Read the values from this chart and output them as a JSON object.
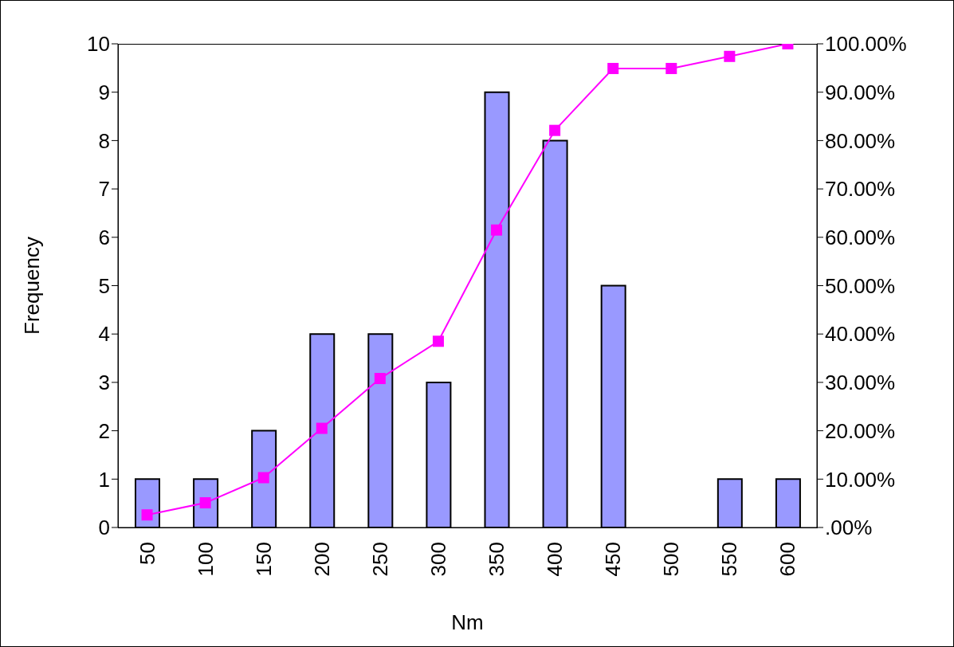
{
  "chart_data": {
    "type": "bar",
    "xlabel": "Nm",
    "ylabel": "Frequency",
    "categories": [
      "50",
      "100",
      "150",
      "200",
      "250",
      "300",
      "350",
      "400",
      "450",
      "500",
      "550",
      "600"
    ],
    "series": [
      {
        "color": "#9999ff",
        "values": [
          1,
          1,
          2,
          4,
          4,
          3,
          9,
          8,
          5,
          0,
          1,
          1
        ]
      },
      {
        "type": "line",
        "axis": "y2",
        "color": "#ff00ff",
        "values": [
          2.6,
          5.1,
          10.3,
          20.5,
          30.8,
          38.5,
          61.5,
          82.1,
          94.9,
          94.9,
          97.4,
          100
        ]
      }
    ],
    "ylim": [
      0,
      10
    ],
    "yticks": [
      0,
      1,
      2,
      3,
      4,
      5,
      6,
      7,
      8,
      9,
      10
    ],
    "y2lim": [
      0,
      100
    ],
    "y2ticks": [
      {
        "value": 0,
        "label": ".00%"
      },
      {
        "value": 10,
        "label": "10.00%"
      },
      {
        "value": 20,
        "label": "20.00%"
      },
      {
        "value": 30,
        "label": "30.00%"
      },
      {
        "value": 40,
        "label": "40.00%"
      },
      {
        "value": 50,
        "label": "50.00%"
      },
      {
        "value": 60,
        "label": "60.00%"
      },
      {
        "value": 70,
        "label": "70.00%"
      },
      {
        "value": 80,
        "label": "80.00%"
      },
      {
        "value": 90,
        "label": "90.00%"
      },
      {
        "value": 100,
        "label": "100.00%"
      }
    ],
    "marker": "square",
    "grid": false,
    "legend": false
  }
}
